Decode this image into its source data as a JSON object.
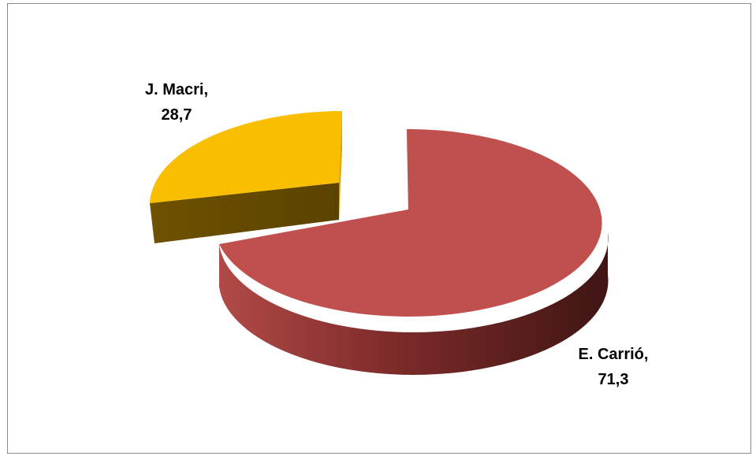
{
  "chart_data": {
    "type": "pie",
    "title": "",
    "style": "3d-exploded",
    "slices": [
      {
        "category": "E. Carrió",
        "value": 71.3,
        "value_label": "71,3",
        "color": "#c0504d",
        "side_color": "#6b2220"
      },
      {
        "category": "J. Macri",
        "value": 28.7,
        "value_label": "28,7",
        "color": "#f9be00",
        "side_color": "#6b4e00"
      }
    ],
    "legend": "none"
  }
}
